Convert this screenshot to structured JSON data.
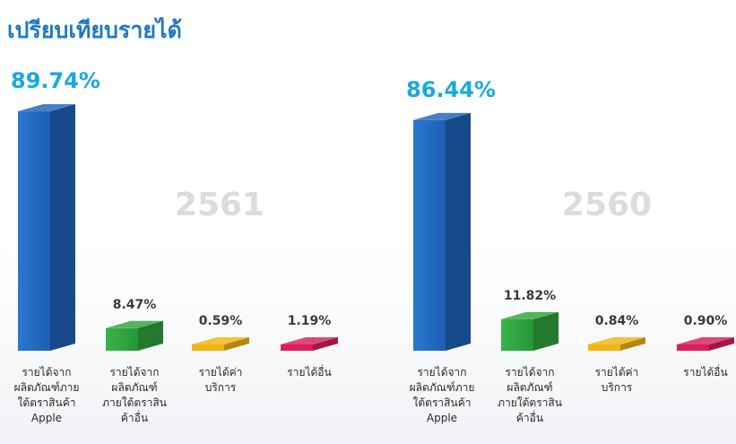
{
  "page": {
    "title": "เปรียบเทียบรายได้"
  },
  "colors": {
    "title": "#1e78c8",
    "big_value": "#19a9e3",
    "blue": "#1e63b8",
    "green": "#2ea33b",
    "yellow": "#f0b512",
    "pink": "#d81f5c"
  },
  "chart_data": [
    {
      "type": "bar",
      "year_label": "2561",
      "categories": [
        "รายได้จาก ผลิตภัณฑ์ภาย ใต้ตราสินค้า Apple",
        "รายได้จาก ผลิตภัณฑ์ ภายใต้ตราสิน ค้าอื่น",
        "รายได้ค่า บริการ",
        "รายได้อื่น"
      ],
      "category_lines": [
        [
          "รายได้จาก",
          "ผลิตภัณฑ์ภาย",
          "ใต้ตราสินค้า",
          "Apple"
        ],
        [
          "รายได้จาก",
          "ผลิตภัณฑ์",
          "ภายใต้ตราสิน",
          "ค้าอื่น"
        ],
        [
          "รายได้ค่า",
          "บริการ"
        ],
        [
          "รายได้อื่น"
        ]
      ],
      "values": [
        89.74,
        8.47,
        0.59,
        1.19
      ],
      "value_labels": [
        "89.74%",
        "8.47%",
        "0.59%",
        "1.19%"
      ],
      "colors": [
        "blue",
        "green",
        "yellow",
        "pink"
      ]
    },
    {
      "type": "bar",
      "year_label": "2560",
      "categories": [
        "รายได้จาก ผลิตภัณฑ์ภาย ใต้ตราสินค้า Apple",
        "รายได้จาก ผลิตภัณฑ์ ภายใต้ตราสิน ค้าอื่น",
        "รายได้ค่า บริการ",
        "รายได้อื่น"
      ],
      "category_lines": [
        [
          "รายได้จาก",
          "ผลิตภัณฑ์ภาย",
          "ใต้ตราสินค้า",
          "Apple"
        ],
        [
          "รายได้จาก",
          "ผลิตภัณฑ์",
          "ภายใต้ตราสิน",
          "ค้าอื่น"
        ],
        [
          "รายได้ค่า",
          "บริการ"
        ],
        [
          "รายได้อื่น"
        ]
      ],
      "values": [
        86.44,
        11.82,
        0.84,
        0.9
      ],
      "value_labels": [
        "86.44%",
        "11.82%",
        "0.84%",
        "0.90%"
      ],
      "colors": [
        "blue",
        "green",
        "yellow",
        "pink"
      ]
    }
  ]
}
